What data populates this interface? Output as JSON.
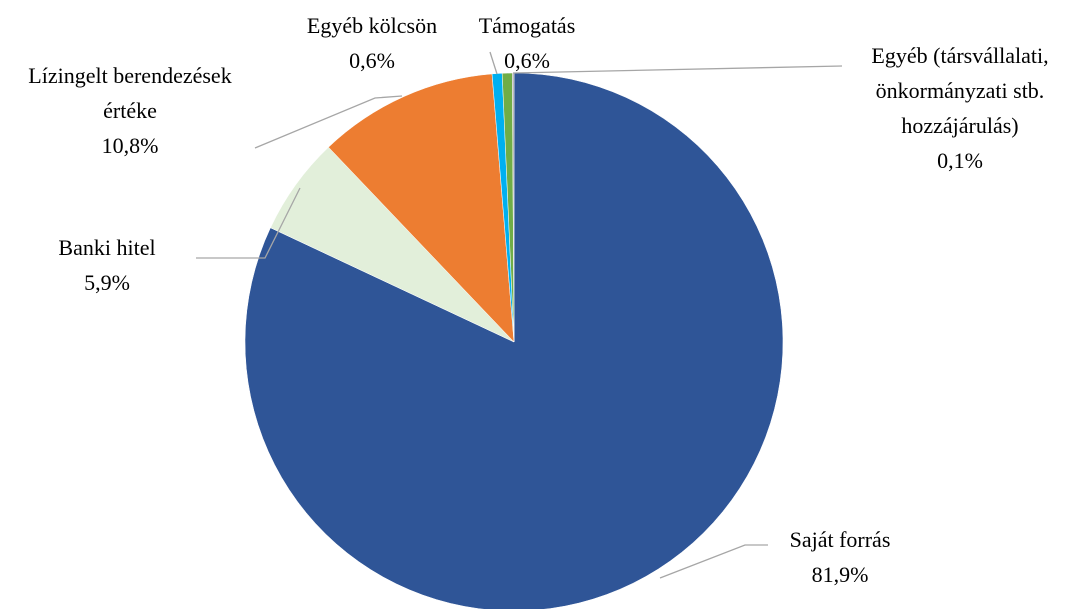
{
  "chart_data": {
    "type": "pie",
    "categories": [
      "Saját forrás",
      "Banki hitel",
      "Lízingelt berendezések értéke",
      "Egyéb kölcsön",
      "Támogatás",
      "Egyéb (társvállalati, önkormányzati stb. hozzájárulás)"
    ],
    "values": [
      81.9,
      5.9,
      10.8,
      0.6,
      0.6,
      0.1
    ],
    "value_labels": [
      "81,9%",
      "5,9%",
      "10,8%",
      "0,6%",
      "0,6%",
      "0,1%"
    ],
    "colors": [
      "#2f5597",
      "#e2efda",
      "#ed7d31",
      "#00b0f0",
      "#70ad47",
      "#a5a5a5"
    ]
  }
}
